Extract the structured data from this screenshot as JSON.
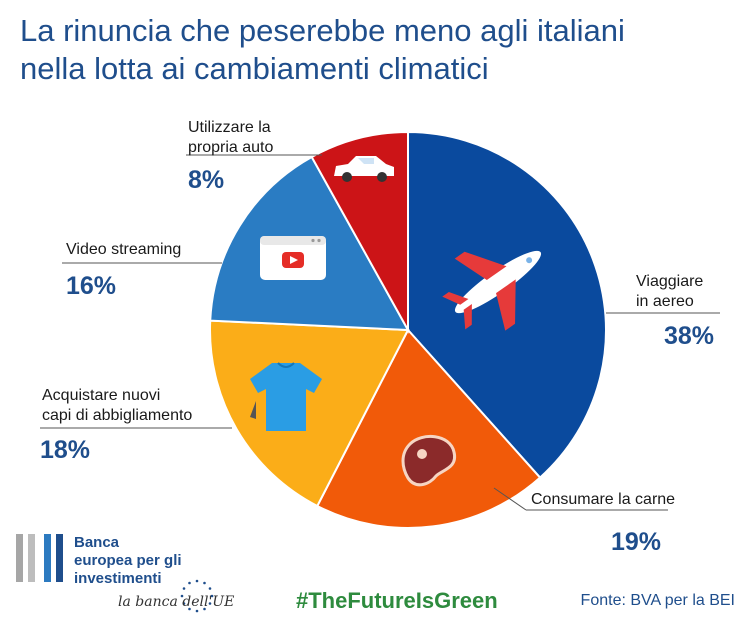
{
  "title_lines": [
    "La rinuncia che peserebbe meno agli italiani",
    "nella lotta ai cambiamenti climatici"
  ],
  "chart_data": {
    "type": "pie",
    "title": "La rinuncia che peserebbe meno agli italiani nella lotta ai cambiamenti climatici",
    "unit": "%",
    "slices": [
      {
        "label": "Viaggiare in aereo",
        "value": 38,
        "value_label": "38%",
        "color": "#0a4a9e",
        "icon": "airplane-icon"
      },
      {
        "label": "Consumare la carne",
        "value": 19,
        "value_label": "19%",
        "color": "#f15a09",
        "icon": "steak-icon"
      },
      {
        "label": "Acquistare nuovi capi di abbigliamento",
        "value": 18,
        "value_label": "18%",
        "color": "#fbad18",
        "icon": "tshirt-icon"
      },
      {
        "label": "Video streaming",
        "value": 16,
        "value_label": "16%",
        "color": "#2a7cc3",
        "icon": "video-player-icon"
      },
      {
        "label": "Utilizzare la propria auto",
        "value": 8,
        "value_label": "8%",
        "color": "#cc1417",
        "icon": "car-icon"
      }
    ]
  },
  "labels": {
    "aereo": [
      "Viaggiare",
      "in aereo"
    ],
    "carne": [
      "Consumare la carne"
    ],
    "abbigliamento": [
      "Acquistare nuovi",
      "capi di abbigliamento"
    ],
    "streaming": [
      "Video streaming"
    ],
    "auto": [
      "Utilizzare la",
      "propria auto"
    ]
  },
  "footer": {
    "logo_lines": [
      "Banca",
      "europea per gli",
      "investimenti"
    ],
    "motto": "la banca dell'UE",
    "hashtag": "#TheFutureIsGreen",
    "source": "Fonte: BVA per la BEI"
  },
  "colors": {
    "title": "#1f4e8c",
    "hashtag": "#2e8b3e"
  }
}
